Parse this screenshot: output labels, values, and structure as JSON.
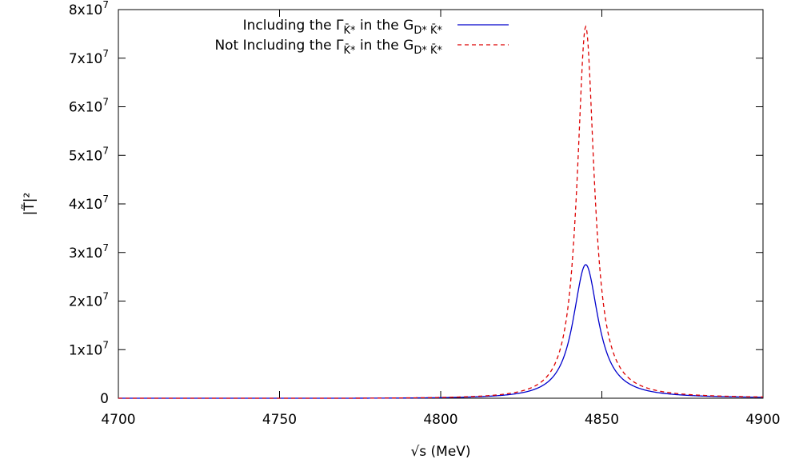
{
  "chart_data": {
    "type": "line",
    "title": "",
    "xlabel": "√s (MeV)",
    "ylabel": "|T̃|²",
    "xlim": [
      4700,
      4900
    ],
    "ylim": [
      0,
      80000000
    ],
    "xticks": [
      4700,
      4750,
      4800,
      4850,
      4900
    ],
    "xtick_labels": [
      "4700",
      "4750",
      "4800",
      "4850",
      "4900"
    ],
    "yticks": [
      0,
      10000000,
      20000000,
      30000000,
      40000000,
      50000000,
      60000000,
      70000000,
      80000000
    ],
    "ytick_labels": [
      {
        "mantissa": "0",
        "exponent": ""
      },
      {
        "mantissa": "1x10",
        "exponent": "7"
      },
      {
        "mantissa": "2x10",
        "exponent": "7"
      },
      {
        "mantissa": "3x10",
        "exponent": "7"
      },
      {
        "mantissa": "4x10",
        "exponent": "7"
      },
      {
        "mantissa": "5x10",
        "exponent": "7"
      },
      {
        "mantissa": "6x10",
        "exponent": "7"
      },
      {
        "mantissa": "7x10",
        "exponent": "7"
      },
      {
        "mantissa": "8x10",
        "exponent": "7"
      }
    ],
    "grid": false,
    "legend_position": "top-right",
    "series": [
      {
        "name": "Including the Γ_K̄* in the G_D* K̄*",
        "legend": {
          "pre": "Including the Γ",
          "sub1": "K̄*",
          "mid": " in the G",
          "sub2": "D* K̄*"
        },
        "color": "#0000cc",
        "dash": "solid",
        "peak_x": 4845,
        "peak_y": 27500000,
        "half_width": 4.7,
        "background_lowx": 4700,
        "points": [
          [
            4700,
            0
          ],
          [
            4800,
            300000
          ],
          [
            4820,
            1000000
          ],
          [
            4830,
            2600000
          ],
          [
            4838,
            8000000
          ],
          [
            4845,
            27500000
          ],
          [
            4852,
            8000000
          ],
          [
            4860,
            2700000
          ],
          [
            4870,
            1500000
          ],
          [
            4880,
            1000000
          ],
          [
            4900,
            500000
          ]
        ]
      },
      {
        "name": "Not Including the Γ_K̄* in the G_D* K̄*",
        "legend": {
          "pre": "Not Including the Γ",
          "sub1": "K̄*",
          "mid": " in the G",
          "sub2": "D* K̄*"
        },
        "color": "#dd0000",
        "dash": "dashed",
        "peak_x": 4845,
        "peak_y": 76500000,
        "half_width": 3.2,
        "points": [
          [
            4700,
            0
          ],
          [
            4800,
            300000
          ],
          [
            4820,
            1000000
          ],
          [
            4830,
            2600000
          ],
          [
            4838,
            10000000
          ],
          [
            4845,
            76500000
          ],
          [
            4852,
            10000000
          ],
          [
            4860,
            2800000
          ],
          [
            4870,
            1500000
          ],
          [
            4880,
            1000000
          ],
          [
            4900,
            500000
          ]
        ]
      }
    ]
  }
}
